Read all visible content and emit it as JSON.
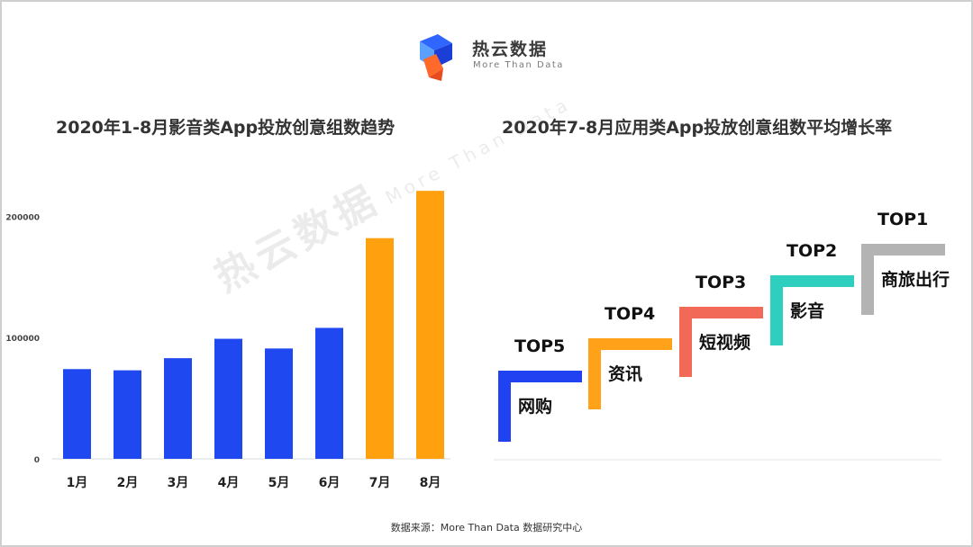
{
  "brand": {
    "name": "热云数据",
    "tagline": "More Than Data"
  },
  "source_note": "数据来源：More Than Data 数据研究中心",
  "colors": {
    "blue": "#1f48f0",
    "orange": "#ffa00f",
    "top5": "#2142f0",
    "top4": "#ffa21a",
    "top3": "#f26958",
    "top2": "#2ecfbe",
    "top1": "#b3b3b3"
  },
  "chart_data": [
    {
      "type": "bar",
      "title": "2020年1-8月影音类App投放创意组数趋势",
      "categories": [
        "1月",
        "2月",
        "3月",
        "4月",
        "5月",
        "6月",
        "7月",
        "8月"
      ],
      "values": [
        74000,
        73000,
        83000,
        99000,
        91000,
        108000,
        182000,
        221000
      ],
      "highlight": [
        false,
        false,
        false,
        false,
        false,
        false,
        true,
        true
      ],
      "y_ticks": [
        "0",
        "100000",
        "200000"
      ],
      "ylim": [
        0,
        230000
      ],
      "grid": false,
      "legend": "none"
    },
    {
      "type": "table",
      "title": "2020年7-8月应用类App投放创意组数平均增长率",
      "ranks": [
        {
          "rank": "TOP5",
          "category": "网购"
        },
        {
          "rank": "TOP4",
          "category": "资讯"
        },
        {
          "rank": "TOP3",
          "category": "短视频"
        },
        {
          "rank": "TOP2",
          "category": "影音"
        },
        {
          "rank": "TOP1",
          "category": "商旅出行"
        }
      ]
    }
  ]
}
